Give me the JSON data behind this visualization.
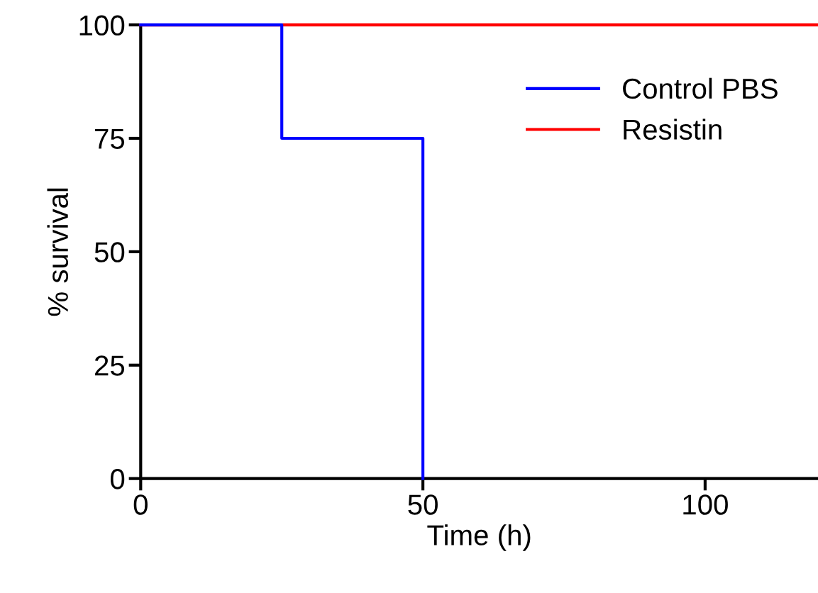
{
  "chart_data": {
    "type": "step",
    "xlabel": "Time (h)",
    "ylabel": "% survival",
    "series": [
      {
        "name": "Control PBS",
        "color": "#0000ff",
        "x": [
          0,
          25,
          50
        ],
        "values": [
          100,
          75,
          0
        ]
      },
      {
        "name": "Resistin",
        "color": "#ff0000",
        "x": [
          0,
          120
        ],
        "values": [
          100,
          100
        ]
      }
    ],
    "xlim": [
      0,
      120
    ],
    "xticks": [
      0,
      50,
      100
    ],
    "ylim": [
      0,
      100
    ],
    "yticks": [
      0,
      25,
      50,
      75,
      100
    ],
    "grid": false,
    "legend": "top right",
    "marker": "none",
    "line_style": "solid"
  }
}
